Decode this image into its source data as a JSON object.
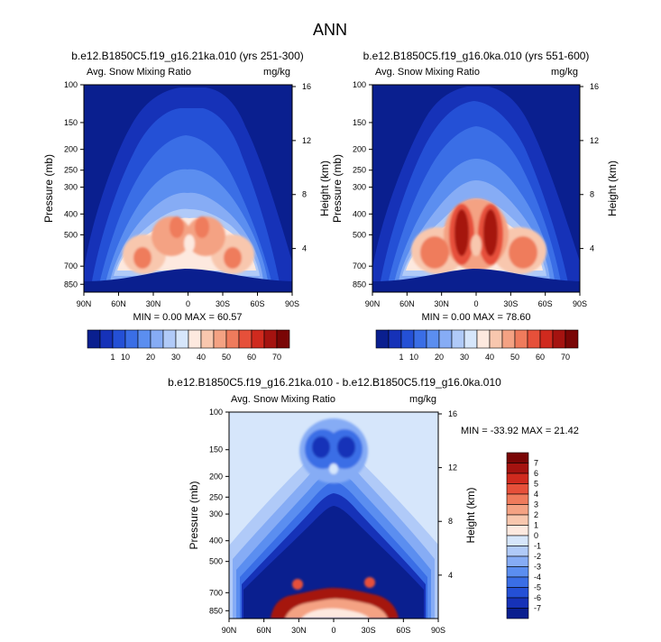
{
  "figure": {
    "title": "ANN"
  },
  "colors": {
    "abs_levels": [
      "#0a1f8f",
      "#1632b8",
      "#2450d6",
      "#3a6ee6",
      "#5b8ef0",
      "#86acf5",
      "#b0caf8",
      "#d6e6fb",
      "#fde9df",
      "#f8c7ae",
      "#f4a283",
      "#ef7b5c",
      "#e6503a",
      "#d02a1e",
      "#a51310",
      "#7a0606"
    ],
    "diff_levels": [
      "#0a1f8f",
      "#1632b8",
      "#2450d6",
      "#3a6ee6",
      "#5b8ef0",
      "#86acf5",
      "#b0caf8",
      "#d6e6fb",
      "#fde9df",
      "#f8c7ae",
      "#f4a283",
      "#ef7b5c",
      "#e6503a",
      "#d02a1e",
      "#a51310",
      "#7a0606"
    ],
    "background_dark": "#0a1f8f"
  },
  "chart_data": [
    {
      "type": "heatmap",
      "title": "b.e12.B1850C5.f19_g16.21ka.010 (yrs 251-300)",
      "left_label": "Avg. Snow Mixing Ratio",
      "right_label": "mg/kg",
      "ylabel": "Pressure (mb)",
      "ylabel_right": "Height (km)",
      "x_ticks": [
        "90N",
        "60N",
        "30N",
        "0",
        "30S",
        "60S",
        "90S"
      ],
      "y_ticks": [
        "100",
        "150",
        "200",
        "250",
        "300",
        "400",
        "500",
        "700",
        "850"
      ],
      "y2_ticks": [
        "16",
        "12",
        "8",
        "4"
      ],
      "min_text": "MIN =   0.00   MAX =  60.57",
      "min": 0.0,
      "max": 60.57,
      "colorbar_ticks": [
        "1",
        "10",
        "20",
        "30",
        "40",
        "50",
        "60",
        "70"
      ]
    },
    {
      "type": "heatmap",
      "title": "b.e12.B1850C5.f19_g16.0ka.010 (yrs 551-600)",
      "left_label": "Avg. Snow Mixing Ratio",
      "right_label": "mg/kg",
      "ylabel": "Pressure (mb)",
      "ylabel_right": "Height (km)",
      "x_ticks": [
        "90N",
        "60N",
        "30N",
        "0",
        "30S",
        "60S",
        "90S"
      ],
      "y_ticks": [
        "100",
        "150",
        "200",
        "250",
        "300",
        "400",
        "500",
        "700",
        "850"
      ],
      "y2_ticks": [
        "16",
        "12",
        "8",
        "4"
      ],
      "min_text": "MIN =   0.00   MAX =  78.60",
      "min": 0.0,
      "max": 78.6,
      "colorbar_ticks": [
        "1",
        "10",
        "20",
        "30",
        "40",
        "50",
        "60",
        "70"
      ]
    },
    {
      "type": "heatmap",
      "title": "b.e12.B1850C5.f19_g16.21ka.010 - b.e12.B1850C5.f19_g16.0ka.010",
      "left_label": "Avg. Snow Mixing Ratio",
      "right_label": "mg/kg",
      "ylabel": "Pressure (mb)",
      "ylabel_right": "Height (km)",
      "x_ticks": [
        "90N",
        "60N",
        "30N",
        "0",
        "30S",
        "60S",
        "90S"
      ],
      "y_ticks": [
        "100",
        "150",
        "200",
        "250",
        "300",
        "400",
        "500",
        "700",
        "850"
      ],
      "y2_ticks": [
        "16",
        "12",
        "8",
        "4"
      ],
      "min_text": "MIN = -33.92   MAX =  21.42",
      "min": -33.92,
      "max": 21.42,
      "colorbar_ticks": [
        "7",
        "6",
        "5",
        "4",
        "3",
        "2",
        "1",
        "0",
        "-1",
        "-2",
        "-3",
        "-4",
        "-5",
        "-6",
        "-7"
      ]
    }
  ]
}
